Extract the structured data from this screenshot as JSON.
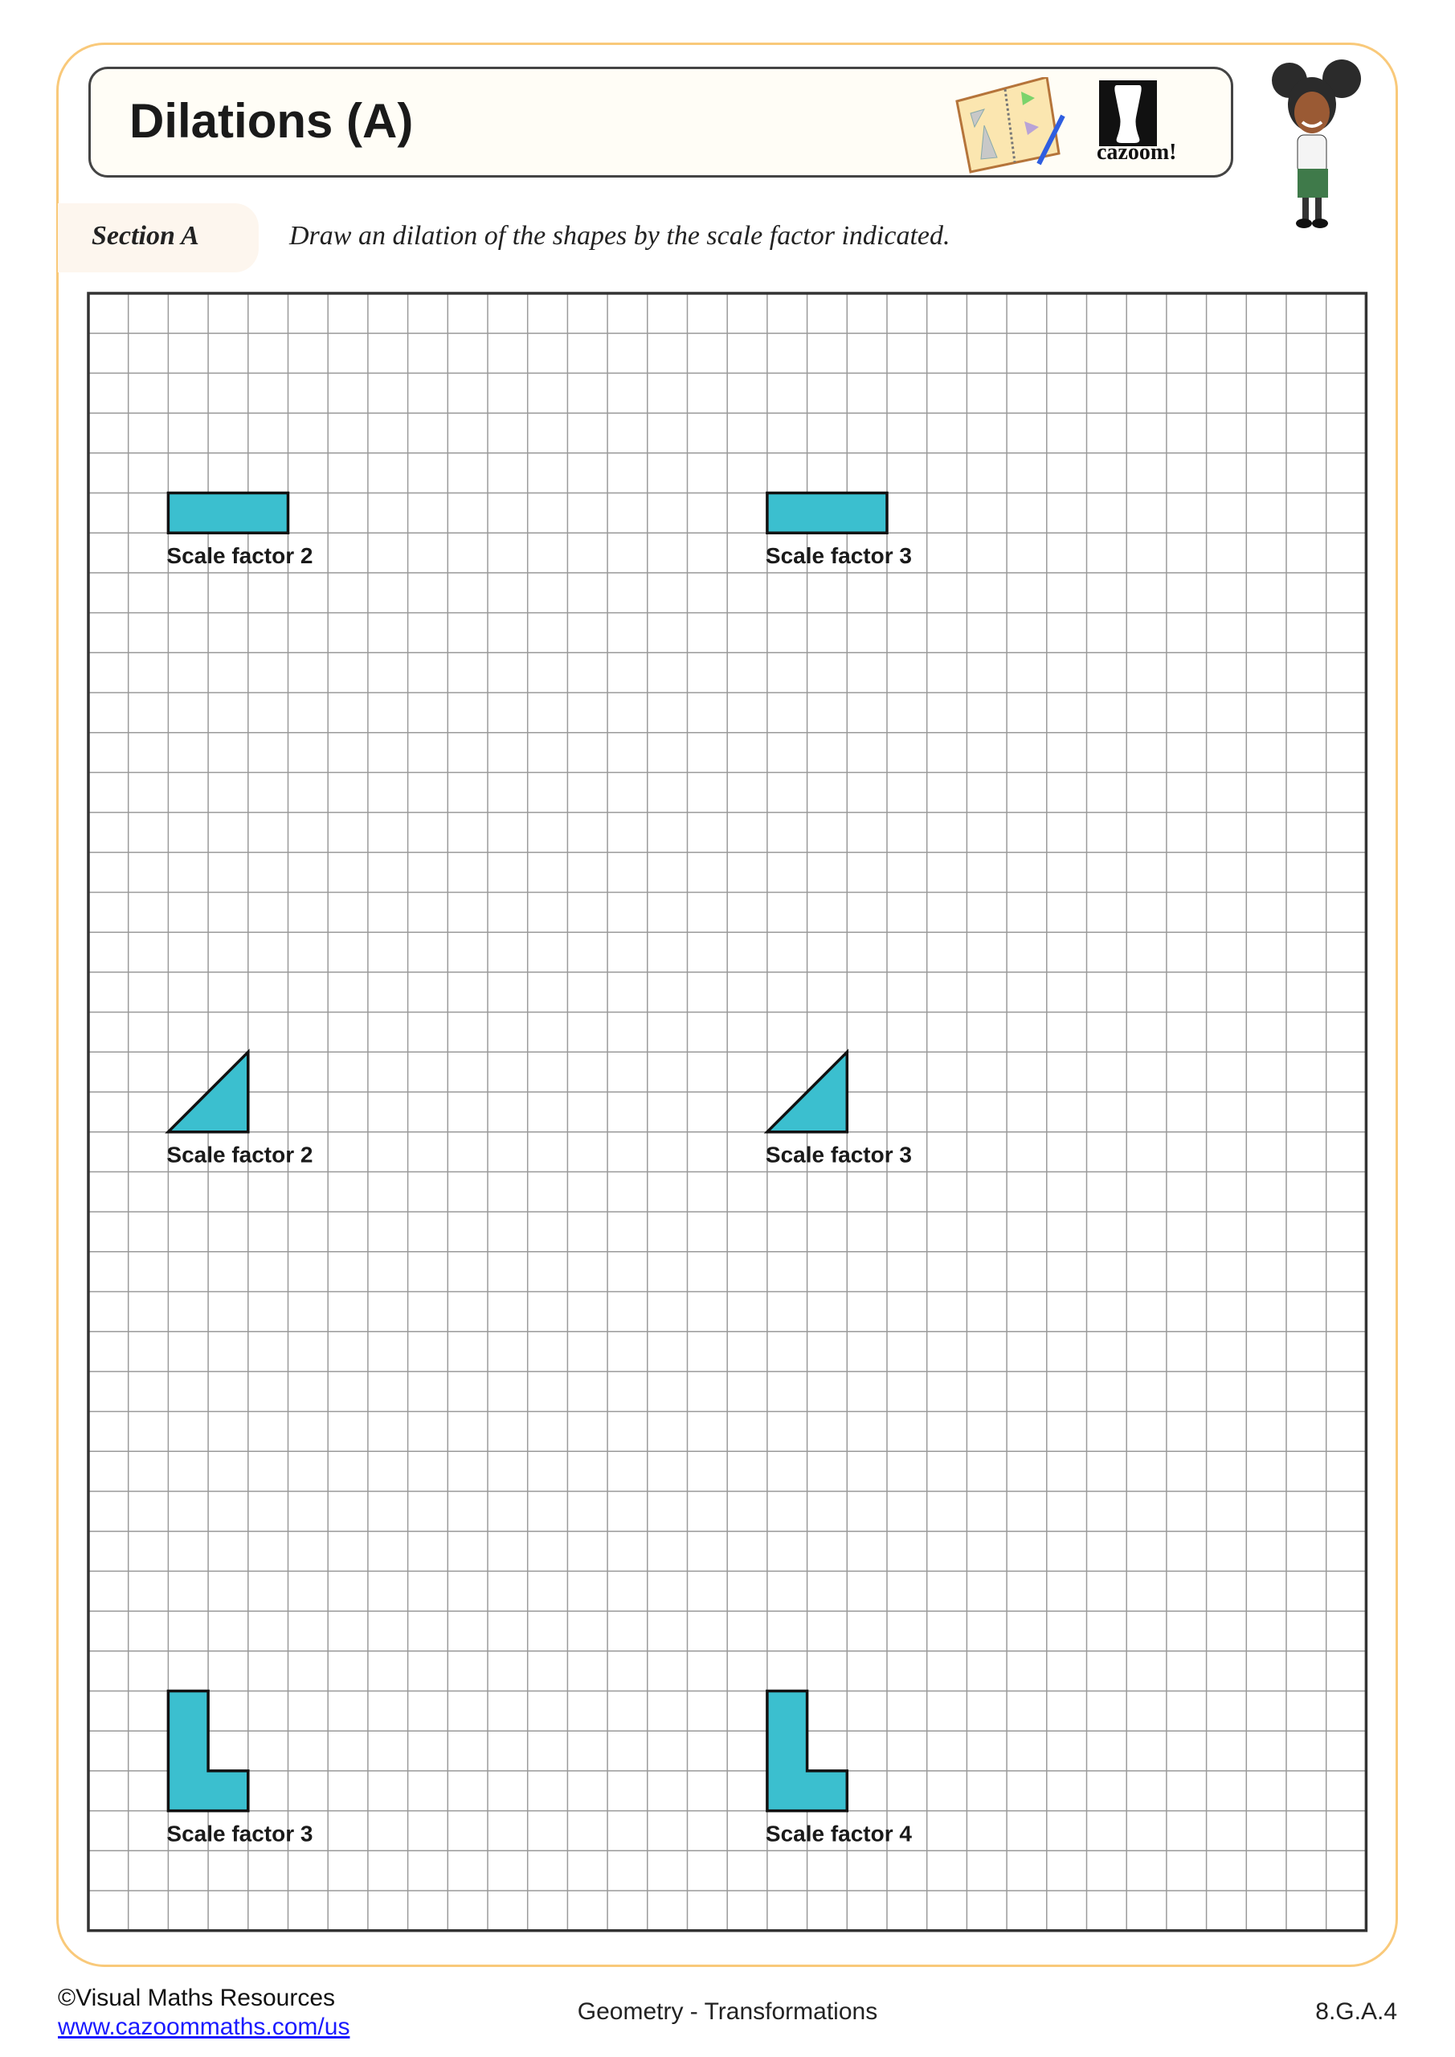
{
  "header": {
    "title": "Dilations (A)",
    "logo_text": "cazoom!"
  },
  "section": {
    "label": "Section A",
    "instruction": "Draw an dilation of the shapes by the scale factor indicated."
  },
  "grid": {
    "columns": 32,
    "rows": 41,
    "shape_color": "#3bbfcf",
    "line_color": "#9a9a9a"
  },
  "shapes": [
    {
      "type": "rectangle",
      "label": "Scale factor 2",
      "cells": [
        [
          2,
          5
        ],
        [
          5,
          5
        ],
        [
          5,
          6
        ],
        [
          2,
          6
        ]
      ]
    },
    {
      "type": "rectangle",
      "label": "Scale factor 3",
      "cells": [
        [
          17,
          5
        ],
        [
          20,
          5
        ],
        [
          20,
          6
        ],
        [
          17,
          6
        ]
      ]
    },
    {
      "type": "triangle",
      "label": "Scale factor 2",
      "cells": [
        [
          2,
          21
        ],
        [
          4,
          21
        ],
        [
          4,
          19
        ]
      ]
    },
    {
      "type": "triangle",
      "label": "Scale factor 3",
      "cells": [
        [
          17,
          21
        ],
        [
          19,
          21
        ],
        [
          19,
          19
        ]
      ]
    },
    {
      "type": "l-shape",
      "label": "Scale factor 3",
      "cells": [
        [
          2,
          35
        ],
        [
          3,
          35
        ],
        [
          3,
          37
        ],
        [
          4,
          37
        ],
        [
          4,
          38
        ],
        [
          2,
          38
        ]
      ]
    },
    {
      "type": "l-shape",
      "label": "Scale factor 4",
      "cells": [
        [
          17,
          35
        ],
        [
          18,
          35
        ],
        [
          18,
          37
        ],
        [
          19,
          37
        ],
        [
          19,
          38
        ],
        [
          17,
          38
        ]
      ]
    }
  ],
  "footer": {
    "copyright": "©Visual Maths Resources",
    "link": "www.cazoommaths.com/us",
    "topic": "Geometry - Transformations",
    "standard": "8.G.A.4"
  }
}
